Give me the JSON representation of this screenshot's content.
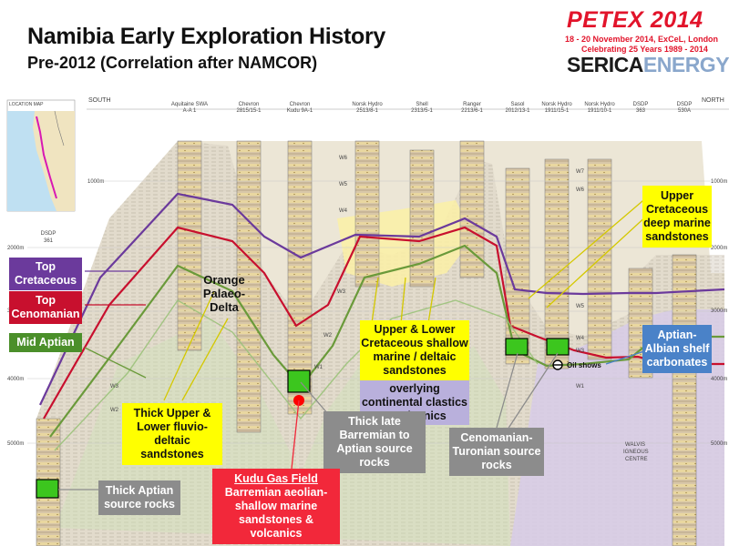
{
  "header": {
    "title": "Namibia Early Exploration History",
    "subtitle": "Pre-2012 (Correlation after NAMCOR)",
    "petex_logo": "PETEX 2014",
    "petex_dates": "18 - 20 November 2014, ExCeL, London",
    "petex_celebrating": "Celebrating 25 Years 1989 - 2014",
    "serica_a": "SERICA",
    "serica_b": "ENERGY"
  },
  "section": {
    "south_label": "SOUTH",
    "north_label": "NORTH",
    "location_map_label": "LOCATION MAP",
    "wells": [
      {
        "operator": "DSDP",
        "name": "361"
      },
      {
        "operator": "Aquitaine SWA",
        "name": "A-A 1"
      },
      {
        "operator": "Chevron",
        "name": "2815/15-1"
      },
      {
        "operator": "Chevron",
        "name": "Kudu 9A-1"
      },
      {
        "operator": "Norsk Hydro",
        "name": "2513/8-1"
      },
      {
        "operator": "Shell",
        "name": "2313/5-1"
      },
      {
        "operator": "Ranger",
        "name": "2213/6-1"
      },
      {
        "operator": "Sasol",
        "name": "2012/13-1"
      },
      {
        "operator": "Norsk Hydro",
        "name": "1911/15-1"
      },
      {
        "operator": "Norsk Hydro",
        "name": "1911/10-1"
      },
      {
        "operator": "DSDP",
        "name": "363"
      },
      {
        "operator": "DSDP",
        "name": "530A"
      }
    ],
    "depth_left": [
      "1000m",
      "2000m",
      "3000m",
      "4000m",
      "5000m"
    ],
    "depth_right": [
      "1000m",
      "2000m",
      "3000m",
      "4000m",
      "5000m"
    ],
    "markers": [
      "W6",
      "W5",
      "W4",
      "W3",
      "W2",
      "W1",
      "W7",
      "W6",
      "W5",
      "W4",
      "W3",
      "W1",
      "W3",
      "W2"
    ],
    "walvis": "WALVIS IGNEOUS CENTRE",
    "oil_shows": "Oil shows",
    "orange_delta": "Orange Palaeo-Delta"
  },
  "callouts": {
    "top_cretaceous": "Top Cretaceous",
    "top_cenomanian": "Top Cenomanian",
    "mid_aptian": "Mid Aptian",
    "upper_cret_deep": "Upper Cretaceous deep marine sandstones",
    "upper_lower_shallow": "Upper & Lower Cretaceous shallow marine / deltaic sandstones",
    "overlying": "overlying continental clastics & volcanics",
    "aptian_albian": "Aptian-Albian shelf carbonates",
    "thick_upper_lower": "Thick Upper & Lower fluvio-deltaic sandstones",
    "thick_late_barremian": "Thick late Barremian to Aptian source rocks",
    "cenomanian_turonian": "Cenomanian-Turonian source rocks",
    "thick_aptian": "Thick Aptian source rocks",
    "kudu_title": "Kudu Gas Field",
    "kudu_desc": "Barremian aeolian-shallow marine sandstones & volcanics"
  },
  "colors": {
    "purple_line": "#6b3a9c",
    "red_line": "#c8102e",
    "green_line": "#6a9a3a",
    "highlight_yellow": "#ffff00"
  }
}
